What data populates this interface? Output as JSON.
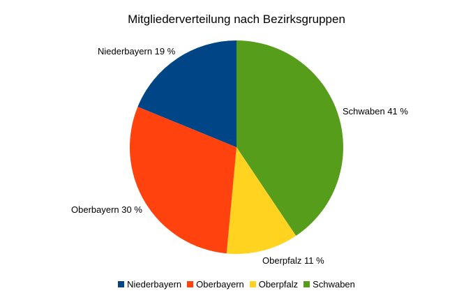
{
  "chart_data": {
    "type": "pie",
    "title": "Mitgliederverteilung nach Bezirksgruppen",
    "categories": [
      "Niederbayern",
      "Oberbayern",
      "Oberpfalz",
      "Schwaben"
    ],
    "values": [
      19,
      30,
      11,
      41
    ],
    "unit": "%",
    "slice_labels": [
      "Niederbayern 19 %",
      "Oberbayern 30 %",
      "Oberpfalz 11 %",
      "Schwaben 41 %"
    ],
    "colors": [
      "#004586",
      "#ff420e",
      "#ffd320",
      "#579d1c"
    ],
    "legend_position": "bottom"
  }
}
